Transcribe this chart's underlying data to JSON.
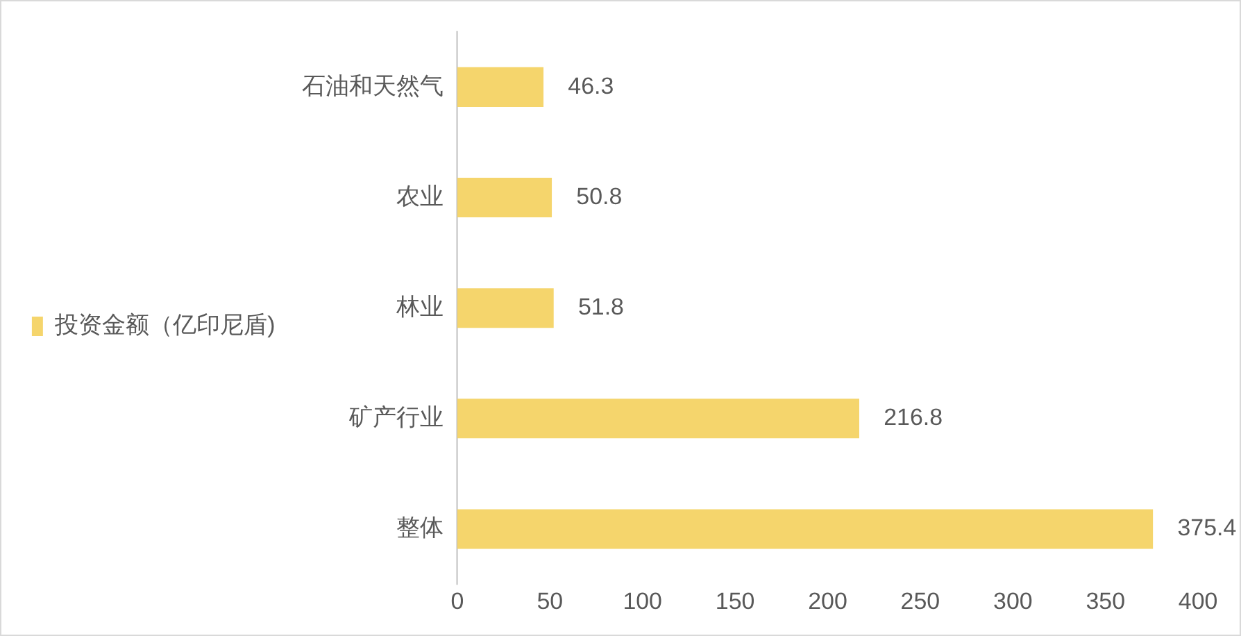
{
  "chart_data": {
    "type": "bar",
    "orientation": "horizontal",
    "categories": [
      "石油和天然气",
      "农业",
      "林业",
      "矿产行业",
      "整体"
    ],
    "series": [
      {
        "name": "投资金额（亿印尼盾)",
        "color": "#f5d56c",
        "values": [
          46.3,
          50.8,
          51.8,
          216.8,
          375.4
        ]
      }
    ],
    "xlim": [
      0,
      400
    ],
    "xticks": [
      0,
      50,
      100,
      150,
      200,
      250,
      300,
      350,
      400
    ],
    "data_labels": true,
    "grid": false,
    "legend": "left"
  }
}
